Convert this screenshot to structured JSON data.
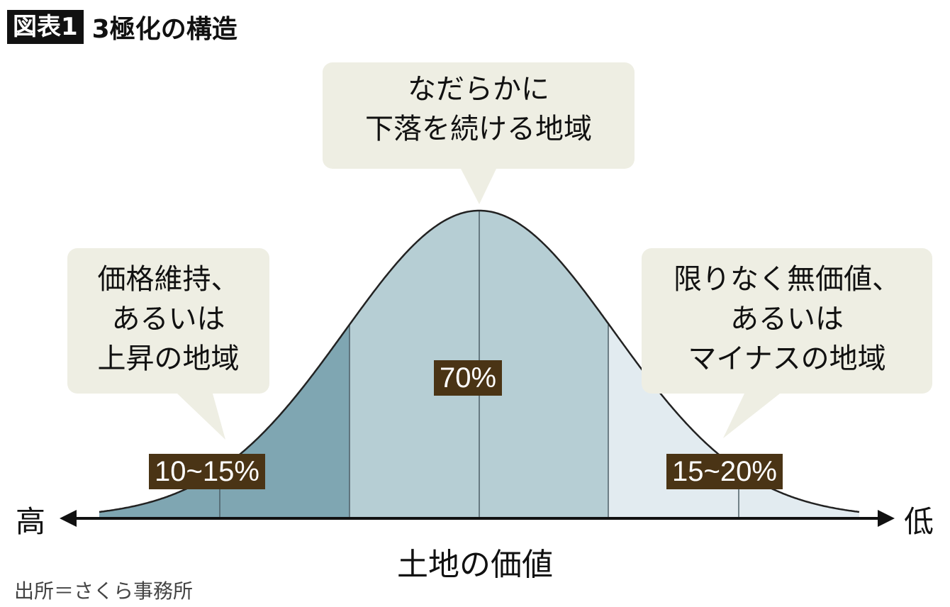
{
  "title": {
    "tag": "図表1",
    "text": "3極化の構造"
  },
  "bubbles": {
    "center": [
      "なだらかに",
      "下落を続ける地域"
    ],
    "left": [
      "価格維持、",
      "あるいは",
      "上昇の地域"
    ],
    "right": [
      "限りなく無価値、",
      "あるいは",
      "マイナスの地域"
    ]
  },
  "segments": {
    "left": {
      "label": "10~15%",
      "color": "#7fa6b2"
    },
    "center": {
      "label": "70%",
      "color": "#b6ced4"
    },
    "right": {
      "label": "15~20%",
      "color": "#e2ebf0"
    }
  },
  "axis": {
    "left": "高",
    "right": "低",
    "label": "土地の価値"
  },
  "source": "出所＝さくら事務所",
  "colors": {
    "bubble": "#eeeee3",
    "label_bg": "#4a3415"
  }
}
